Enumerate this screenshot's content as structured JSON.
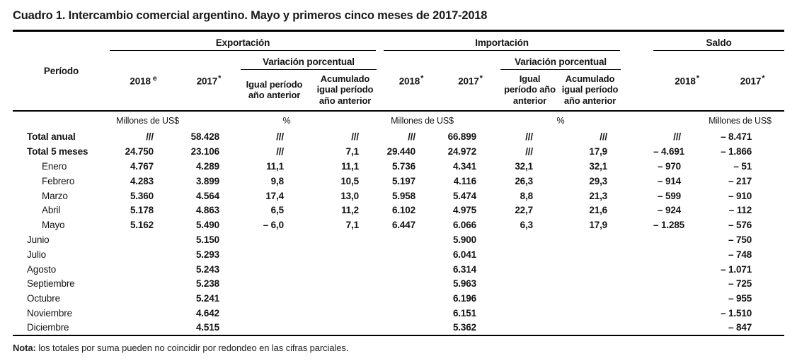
{
  "title": "Cuadro 1. Intercambio comercial argentino. Mayo y primeros cinco meses de 2017-2018",
  "table": {
    "period_header": "Período",
    "groups": {
      "exportacion": "Exportación",
      "importacion": "Importación",
      "saldo": "Saldo",
      "variacion": "Variación porcentual"
    },
    "col_headers": {
      "exp_2018": {
        "base": "2018",
        "sup": "e"
      },
      "exp_2017": {
        "base": "2017",
        "sup": "*"
      },
      "imp_2018": {
        "base": "2018",
        "sup": "*"
      },
      "imp_2017": {
        "base": "2017",
        "sup": "*"
      },
      "saldo_2018": {
        "base": "2018",
        "sup": "*"
      },
      "saldo_2017": {
        "base": "2017",
        "sup": "*"
      },
      "igual": "Igual período año anterior",
      "acumulado": "Acumulado igual período año anterior"
    },
    "units": {
      "millones": "Millones de US$",
      "pct": "%"
    },
    "rows": [
      {
        "label": "Total anual",
        "style": "total",
        "cells": [
          "///",
          "58.428",
          "///",
          "///",
          "///",
          "66.899",
          "///",
          "///",
          "///",
          "– 8.471"
        ]
      },
      {
        "label": "Total 5 meses",
        "style": "total",
        "cells": [
          "24.750",
          "23.106",
          "///",
          "7,1",
          "29.440",
          "24.972",
          "///",
          "17,9",
          "– 4.691",
          "– 1.866"
        ]
      },
      {
        "label": "Enero",
        "style": "month-indent",
        "cells": [
          "4.767",
          "4.289",
          "11,1",
          "11,1",
          "5.736",
          "4.341",
          "32,1",
          "32,1",
          "– 970",
          "– 51"
        ]
      },
      {
        "label": "Febrero",
        "style": "month-indent",
        "cells": [
          "4.283",
          "3.899",
          "9,8",
          "10,5",
          "5.197",
          "4.116",
          "26,3",
          "29,3",
          "– 914",
          "– 217"
        ]
      },
      {
        "label": "Marzo",
        "style": "month-indent",
        "cells": [
          "5.360",
          "4.564",
          "17,4",
          "13,0",
          "5.958",
          "5.474",
          "8,8",
          "21,3",
          "– 599",
          "– 910"
        ]
      },
      {
        "label": "Abril",
        "style": "month-indent",
        "cells": [
          "5.178",
          "4.863",
          "6,5",
          "11,2",
          "6.102",
          "4.975",
          "22,7",
          "21,6",
          "– 924",
          "– 112"
        ]
      },
      {
        "label": "Mayo",
        "style": "month-indent",
        "cells": [
          "5.162",
          "5.490",
          "– 6,0",
          "7,1",
          "6.447",
          "6.066",
          "6,3",
          "17,9",
          "– 1.285",
          "– 576"
        ]
      },
      {
        "label": "Junio",
        "style": "month",
        "cells": [
          "",
          "5.150",
          "",
          "",
          "",
          "5.900",
          "",
          "",
          "",
          "– 750"
        ]
      },
      {
        "label": "Julio",
        "style": "month",
        "cells": [
          "",
          "5.293",
          "",
          "",
          "",
          "6.041",
          "",
          "",
          "",
          "– 748"
        ]
      },
      {
        "label": "Agosto",
        "style": "month",
        "cells": [
          "",
          "5.243",
          "",
          "",
          "",
          "6.314",
          "",
          "",
          "",
          "– 1.071"
        ]
      },
      {
        "label": "Septiembre",
        "style": "month",
        "cells": [
          "",
          "5.238",
          "",
          "",
          "",
          "5.963",
          "",
          "",
          "",
          "– 725"
        ]
      },
      {
        "label": "Octubre",
        "style": "month",
        "cells": [
          "",
          "5.241",
          "",
          "",
          "",
          "6.196",
          "",
          "",
          "",
          "– 955"
        ]
      },
      {
        "label": "Noviembre",
        "style": "month",
        "cells": [
          "",
          "4.642",
          "",
          "",
          "",
          "6.151",
          "",
          "",
          "",
          "– 1.510"
        ]
      },
      {
        "label": "Diciembre",
        "style": "month",
        "cells": [
          "",
          "4.515",
          "",
          "",
          "",
          "5.362",
          "",
          "",
          "",
          "– 847"
        ]
      }
    ]
  },
  "note": {
    "label": "Nota:",
    "text": " los totales por suma pueden no coincidir por redondeo en las cifras parciales."
  }
}
